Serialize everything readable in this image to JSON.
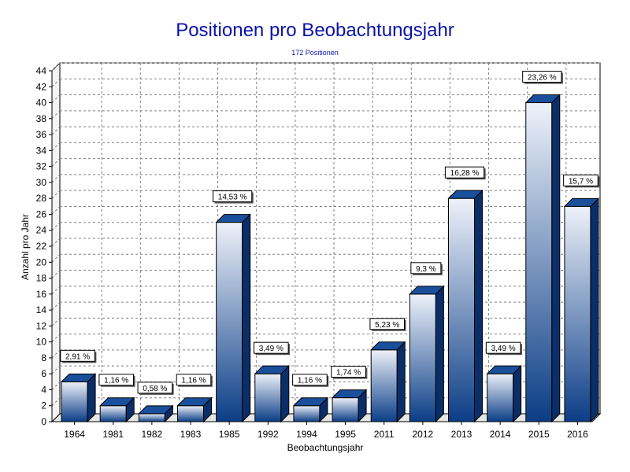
{
  "chart_data": {
    "type": "bar",
    "title": "Positionen pro Beobachtungsjahr",
    "subtitle": "172 Positionen",
    "xlabel": "Beobachtungsjahr",
    "ylabel": "Anzahl pro Jahr",
    "ylim": [
      0,
      44
    ],
    "ytick_step": 2,
    "grid": true,
    "categories": [
      "1964",
      "1981",
      "1982",
      "1983",
      "1985",
      "1992",
      "1994",
      "1995",
      "2011",
      "2012",
      "2013",
      "2014",
      "2015",
      "2016"
    ],
    "values": [
      5,
      2,
      1,
      2,
      25,
      6,
      2,
      3,
      9,
      16,
      28,
      6,
      40,
      27
    ],
    "percent_labels": [
      "2,91 %",
      "1,16 %",
      "0,58 %",
      "1,16 %",
      "14,53 %",
      "3,49 %",
      "1,16 %",
      "1,74 %",
      "5,23 %",
      "9,3 %",
      "16,28 %",
      "3,49 %",
      "23,26 %",
      "15,7 %"
    ],
    "colors": {
      "title": "#0b12a8",
      "bar_top": "#eef2fa",
      "bar_bottom": "#0b3d86",
      "bar_side": "#0a2e68",
      "bar_cap": "#1a4f9c",
      "grid": "#808080",
      "plot_bg": "#ffffff"
    }
  }
}
